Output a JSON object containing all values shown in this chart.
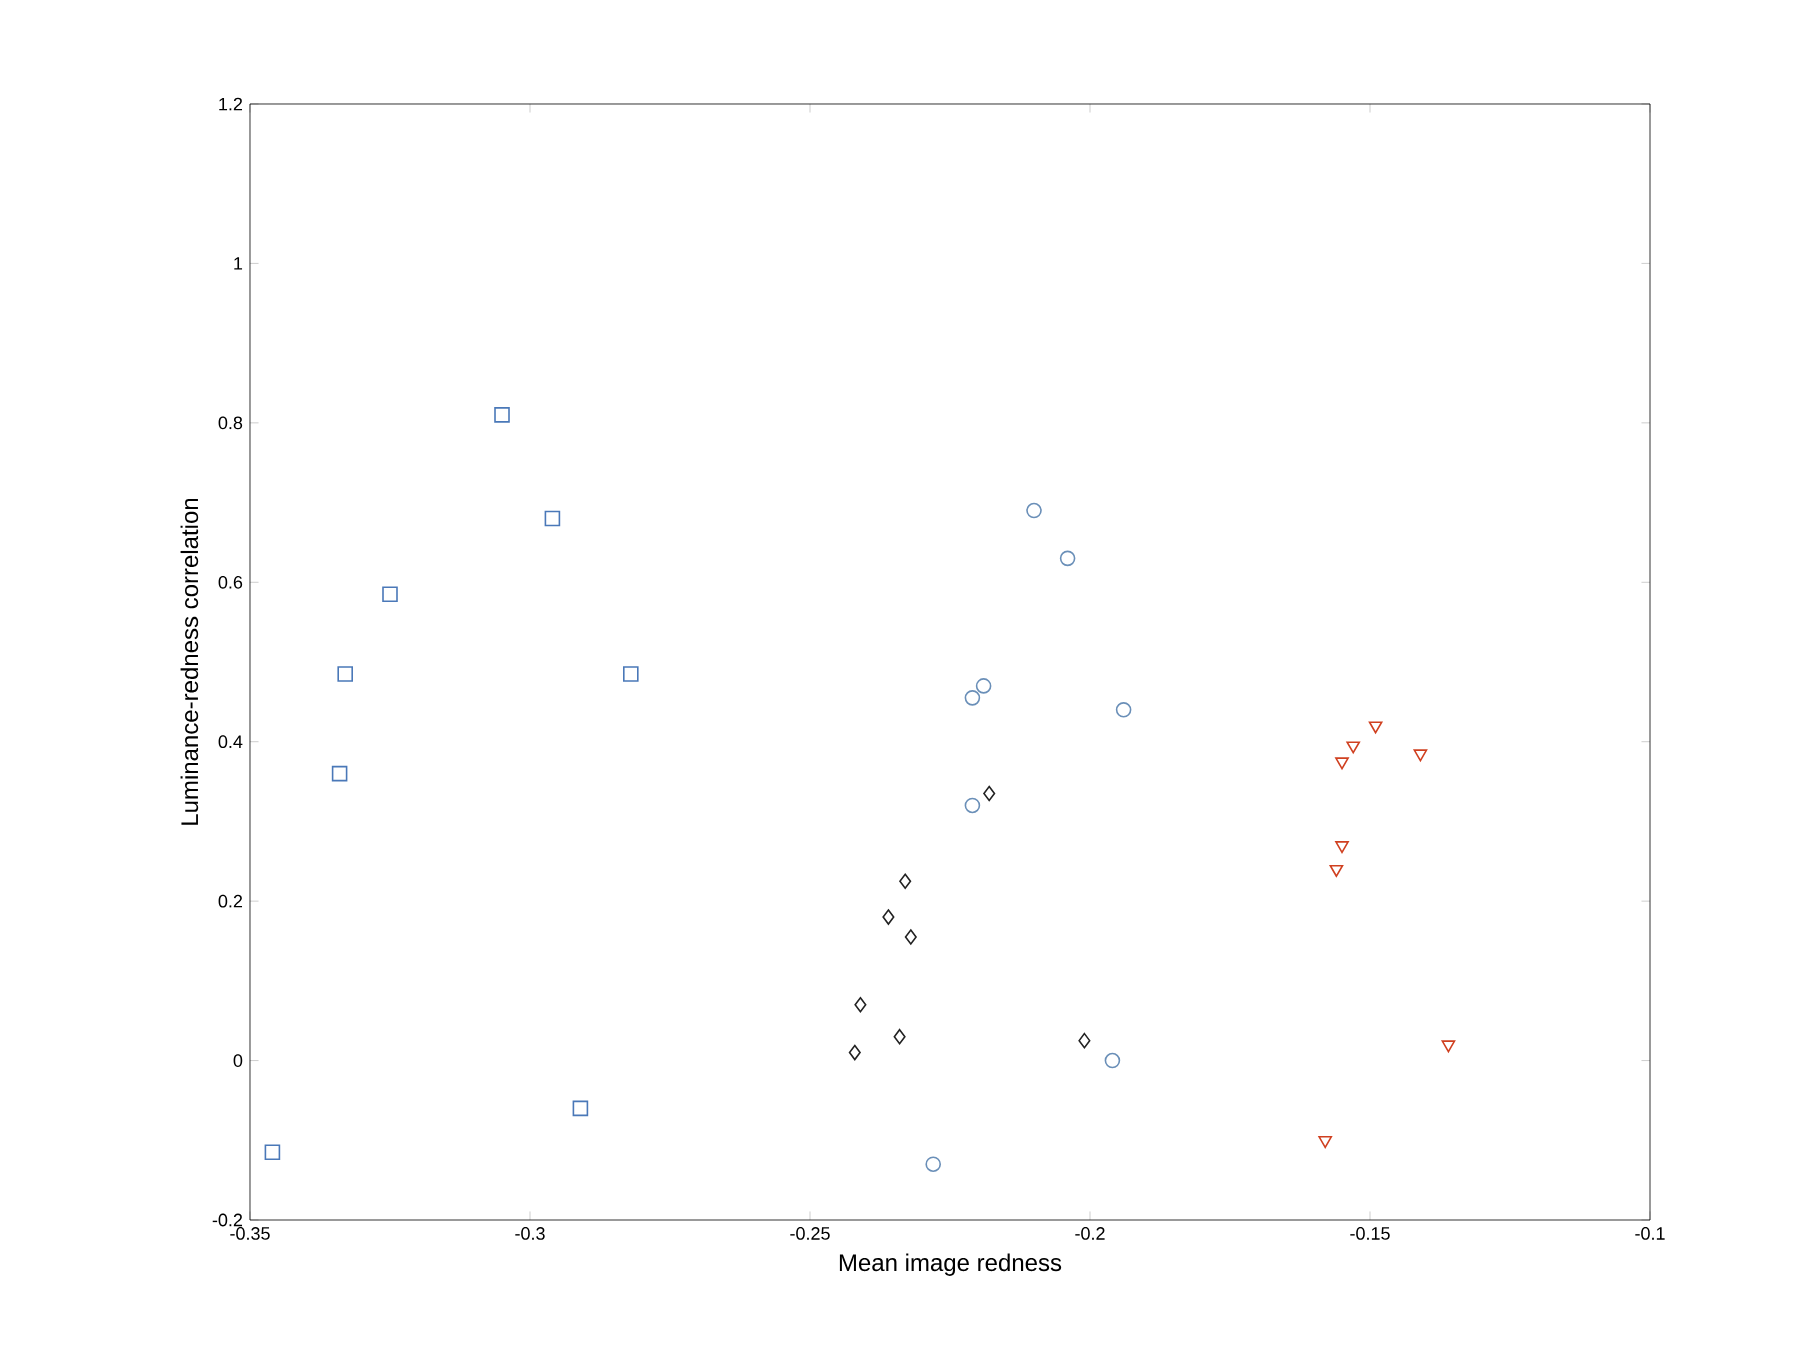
{
  "chart_data": {
    "type": "scatter",
    "xlabel": "Mean image redness",
    "ylabel": "Luminance-redness correlation",
    "xlim": [
      -0.35,
      -0.1
    ],
    "ylim": [
      -0.2,
      1.2
    ],
    "xticks": [
      -0.35,
      -0.3,
      -0.25,
      -0.2,
      -0.15,
      -0.1
    ],
    "yticks": [
      -0.2,
      0,
      0.2,
      0.4,
      0.6,
      0.8,
      1,
      1.2
    ],
    "series": [
      {
        "color": "#4a78b8",
        "marker": "square",
        "x": [
          -0.346,
          -0.334,
          -0.333,
          -0.325,
          -0.305,
          -0.296,
          -0.291,
          -0.282
        ],
        "values": [
          -0.115,
          0.36,
          0.485,
          0.585,
          0.81,
          0.68,
          -0.06,
          0.485
        ]
      },
      {
        "color": "#6a8fb8",
        "marker": "circle",
        "x": [
          -0.228,
          -0.221,
          -0.221,
          -0.219,
          -0.21,
          -0.204,
          -0.194,
          -0.196
        ],
        "values": [
          -0.13,
          0.32,
          0.455,
          0.47,
          0.69,
          0.63,
          0.44,
          0.0
        ]
      },
      {
        "color": "#222222",
        "marker": "diamond",
        "x": [
          -0.242,
          -0.241,
          -0.236,
          -0.233,
          -0.232,
          -0.234,
          -0.218,
          -0.201
        ],
        "values": [
          0.01,
          0.07,
          0.18,
          0.225,
          0.155,
          0.03,
          0.335,
          0.025
        ]
      },
      {
        "color": "#d04020",
        "marker": "triangle",
        "x": [
          -0.158,
          -0.156,
          -0.155,
          -0.155,
          -0.153,
          -0.149,
          -0.141,
          -0.136
        ],
        "values": [
          -0.1,
          0.24,
          0.27,
          0.375,
          0.395,
          0.42,
          0.385,
          0.02
        ]
      }
    ]
  }
}
